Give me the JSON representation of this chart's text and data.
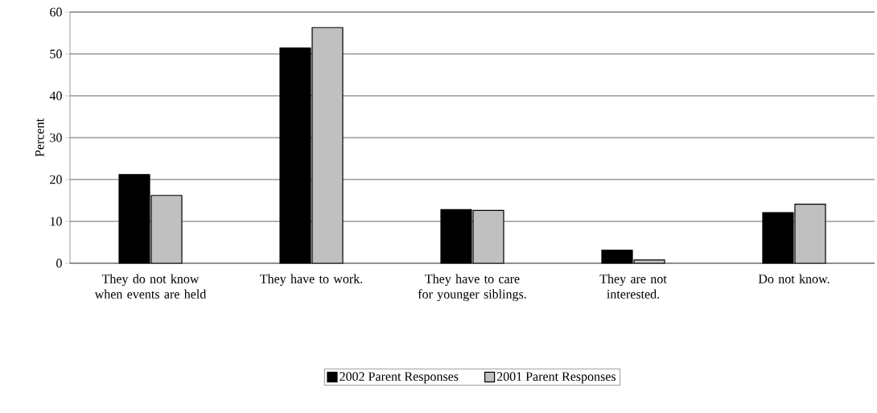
{
  "chart_data": {
    "type": "bar",
    "ylabel": "Percent",
    "categories": [
      "They do not know when events are held",
      "They have to work.",
      "They have to care for younger siblings.",
      "They are not interested.",
      "Do not know."
    ],
    "series": [
      {
        "name": "2002 Parent Responses",
        "color": "#000000",
        "values": [
          21.2,
          51.4,
          12.8,
          3.1,
          12.1
        ]
      },
      {
        "name": "2001 Parent Responses",
        "color": "#c0c0c0",
        "values": [
          16.2,
          56.3,
          12.6,
          0.8,
          14.1
        ]
      }
    ],
    "ylim": [
      0,
      60
    ],
    "yticks": [
      0,
      10,
      20,
      30,
      40,
      50,
      60
    ],
    "grid": "y",
    "legend": "bottom"
  }
}
